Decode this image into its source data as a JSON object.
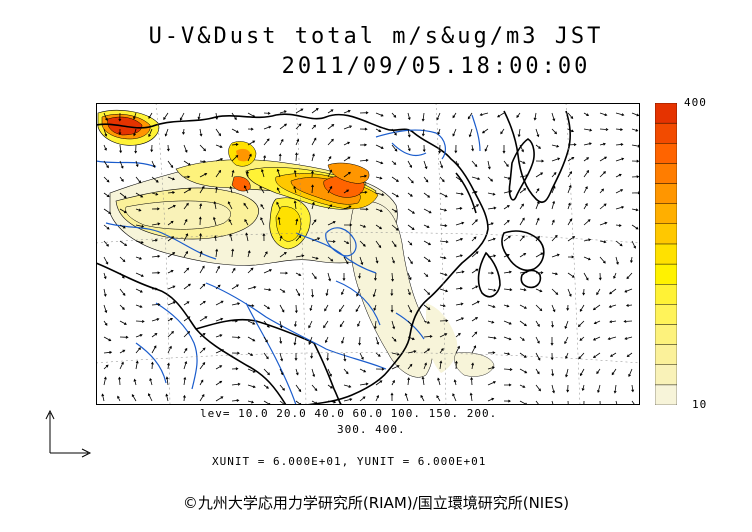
{
  "title": {
    "line1": "U-V&Dust total m/s&ug/m3 JST",
    "line2": "2011/09/05.18:00:00"
  },
  "colorbar": {
    "max_label": "400",
    "min_label": "10",
    "colors": [
      "#f7f4d9",
      "#f9f2b8",
      "#fbf19a",
      "#fdf27c",
      "#fff35a",
      "#fff236",
      "#fff200",
      "#ffe100",
      "#ffc800",
      "#ffaf00",
      "#ff9600",
      "#ff7d00",
      "#ff6400",
      "#f24b00",
      "#e53300"
    ]
  },
  "levels": {
    "line1": "lev= 10.0 20.0 40.0 60.0 100. 150. 200.",
    "line2": "300. 400."
  },
  "units_text": "XUNIT = 6.000E+01, YUNIT = 6.000E+01",
  "credit": "©九州大学応用力学研究所(RIAM)/国立環境研究所(NIES)",
  "colors": {
    "coast": "#000000",
    "rivers": "#1a5ccc",
    "dust_low": "#f7f4d9",
    "dust_mid": "#fff236",
    "dust_high": "#ff6400"
  }
}
